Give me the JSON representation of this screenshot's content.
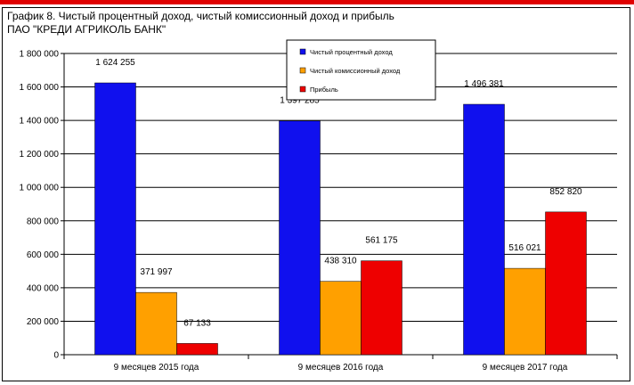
{
  "title_line1": "График 8. Чистый процентный доход, чистый комиссионный доход и прибыль",
  "title_line2": "ПАО \"КРЕДИ АГРИКОЛЬ БАНК\"",
  "colors": {
    "accent_top": "#e00000"
  },
  "chart_data": {
    "type": "bar",
    "categories": [
      "9 месяцев 2015 года",
      "9 месяцев 2016 года",
      "9 месяцев 2017 года"
    ],
    "series": [
      {
        "name": "Чистый процентный доход",
        "values": [
          1624255,
          1397285,
          1496381
        ],
        "color": "#1010ee"
      },
      {
        "name": "Чистый комиссионный доход",
        "values": [
          371997,
          438310,
          516021
        ],
        "color": "#ffa000"
      },
      {
        "name": "Прибыль",
        "values": [
          67133,
          561175,
          852820
        ],
        "color": "#ee0000"
      }
    ],
    "data_labels": [
      [
        "1 624 255",
        "1 397 285",
        "1 496 381"
      ],
      [
        "371 997",
        "438 310",
        "516 021"
      ],
      [
        "67 133",
        "561 175",
        "852 820"
      ]
    ],
    "ylim": [
      0,
      1800000
    ],
    "yticks": [
      0,
      200000,
      400000,
      600000,
      800000,
      1000000,
      1200000,
      1400000,
      1600000,
      1800000
    ],
    "ytick_labels": [
      "0",
      "200 000",
      "400 000",
      "600 000",
      "800 000",
      "1 000 000",
      "1 200 000",
      "1 400 000",
      "1 600 000",
      "1 800 000"
    ],
    "grid": true,
    "legend_position": "top-center"
  }
}
